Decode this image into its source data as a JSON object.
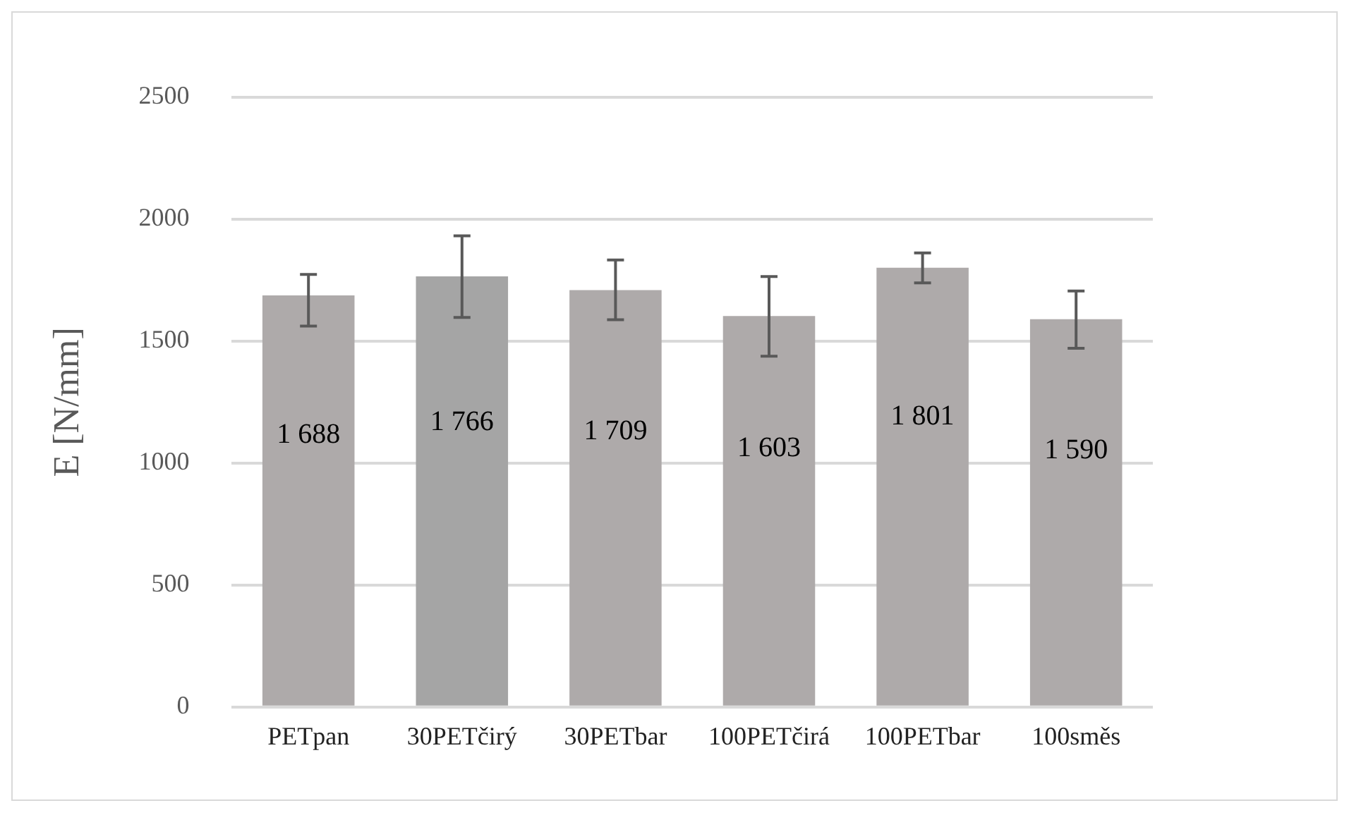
{
  "chart_data": {
    "type": "bar",
    "ylabel": "E [N/mm]",
    "categories": [
      "PETpan",
      "30PETčirý",
      "30PETbar",
      "100PETčirá",
      "100PETbar",
      "100směs"
    ],
    "values": [
      1688,
      1766,
      1709,
      1603,
      1801,
      1590
    ],
    "colors": [
      "#aeaaaa",
      "#a5a5a5",
      "#aeaaaa",
      "#aeaaaa",
      "#aeaaaa",
      "#aeaaaa"
    ],
    "errors": [
      [
        1562,
        1774
      ],
      [
        1597,
        1932
      ],
      [
        1588,
        1833
      ],
      [
        1438,
        1765
      ],
      [
        1739,
        1862
      ],
      [
        1471,
        1706
      ]
    ],
    "value_labels": [
      "1 688",
      "1 766",
      "1 709",
      "1 603",
      "1 801",
      "1 590"
    ],
    "ylim": [
      0,
      2500
    ],
    "yticks": [
      0,
      500,
      1000,
      1500,
      2000,
      2500
    ],
    "grid": "y"
  }
}
